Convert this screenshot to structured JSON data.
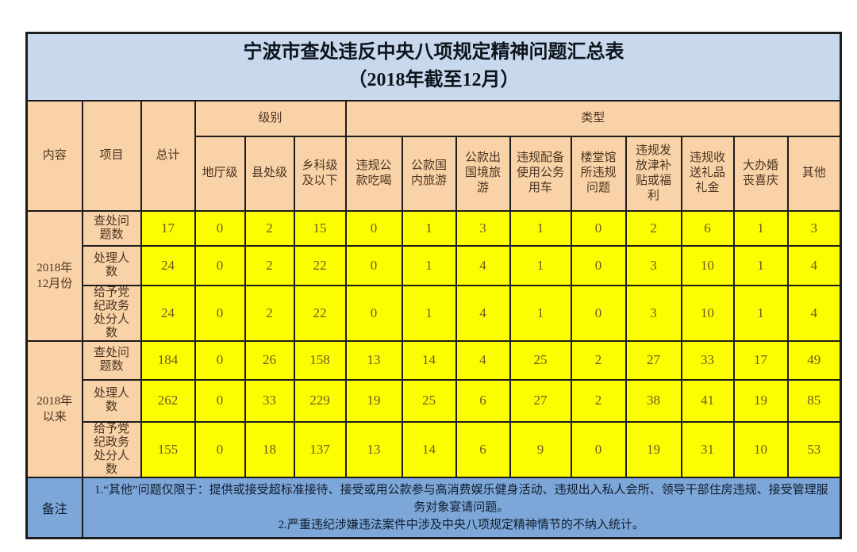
{
  "title": {
    "line1": "宁波市查处违反中央八项规定精神问题汇总表",
    "line2": "（2018年截至12月）"
  },
  "header": {
    "content_label": "内容",
    "item_label": "项目",
    "total_label": "总计",
    "level_group_label": "级别",
    "type_group_label": "类型",
    "level_columns": [
      "地厅级",
      "县处级",
      "乡科级及以下"
    ],
    "type_columns": [
      "违规公款吃喝",
      "公款国内旅游",
      "公款出国境旅游",
      "违规配备使用公务用车",
      "楼堂馆所违规问题",
      "违规发放津补贴或福利",
      "违规收送礼品礼金",
      "大办婚丧喜庆",
      "其他"
    ]
  },
  "sections": [
    {
      "period": "2018年12月份",
      "period_lines": [
        "2018年",
        "12月份"
      ],
      "rows": [
        {
          "item": "查处问题数",
          "values": [
            17,
            0,
            2,
            15,
            0,
            1,
            3,
            1,
            0,
            2,
            6,
            1,
            3
          ]
        },
        {
          "item": "处理人数",
          "values": [
            24,
            0,
            2,
            22,
            0,
            1,
            4,
            1,
            0,
            3,
            10,
            1,
            4
          ]
        },
        {
          "item": "给予党纪政务处分人数",
          "values": [
            24,
            0,
            2,
            22,
            0,
            1,
            4,
            1,
            0,
            3,
            10,
            1,
            4
          ]
        }
      ]
    },
    {
      "period": "2018年以来",
      "period_lines": [
        "2018年",
        "以来"
      ],
      "rows": [
        {
          "item": "查处问题数",
          "values": [
            184,
            0,
            26,
            158,
            13,
            14,
            4,
            25,
            2,
            27,
            33,
            17,
            49
          ]
        },
        {
          "item": "处理人数",
          "values": [
            262,
            0,
            33,
            229,
            19,
            25,
            6,
            27,
            2,
            38,
            41,
            19,
            85
          ]
        },
        {
          "item": "给予党纪政务处分人数",
          "values": [
            155,
            0,
            18,
            137,
            13,
            14,
            6,
            9,
            0,
            19,
            31,
            10,
            53
          ]
        }
      ]
    }
  ],
  "footer": {
    "label": "备注",
    "notes": [
      "1.“其他”问题仅限于：提供或接受超标准接待、接受或用公款参与高消费娱乐健身活动、违规出入私人会所、领导干部住房违规、接受管理服务对象宴请问题。",
      "2.严重违纪涉嫌违法案件中涉及中央八项规定精神情节的不纳入统计。"
    ]
  },
  "colors": {
    "title_bg": "#c9d9ed",
    "header_bg": "#fad2a8",
    "data_bg": "#fdfd02",
    "footer_bg": "#7da7d8",
    "border": "#1c1c1c",
    "header_text": "#4a3420",
    "number_text": "#6d5b20"
  }
}
